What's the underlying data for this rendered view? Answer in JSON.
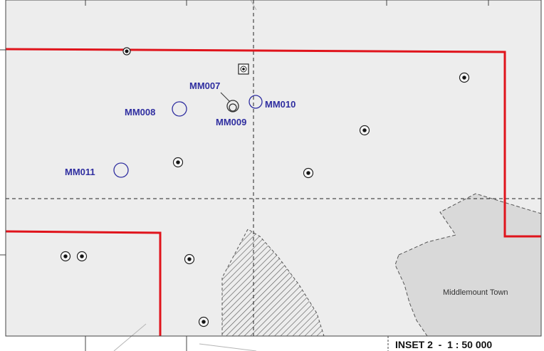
{
  "map": {
    "inset_title": "INSET 2  -  1 : 50 000",
    "town_label": "Middlemount Town",
    "colors": {
      "background": "#ededed",
      "boundary": "#e0141c",
      "site_label": "#2f2ea0",
      "town_fill": "#d9d9d9",
      "hatch": "#555555"
    },
    "sites": [
      {
        "id": "MM007",
        "label": "MM007"
      },
      {
        "id": "MM008",
        "label": "MM008"
      },
      {
        "id": "MM009",
        "label": "MM009"
      },
      {
        "id": "MM010",
        "label": "MM010"
      },
      {
        "id": "MM011",
        "label": "MM011"
      }
    ],
    "symbols": {
      "monitoring_site": "open-circle",
      "point_feature": "circled-dot-icon",
      "boxed_point": "boxed-dot-icon"
    }
  }
}
